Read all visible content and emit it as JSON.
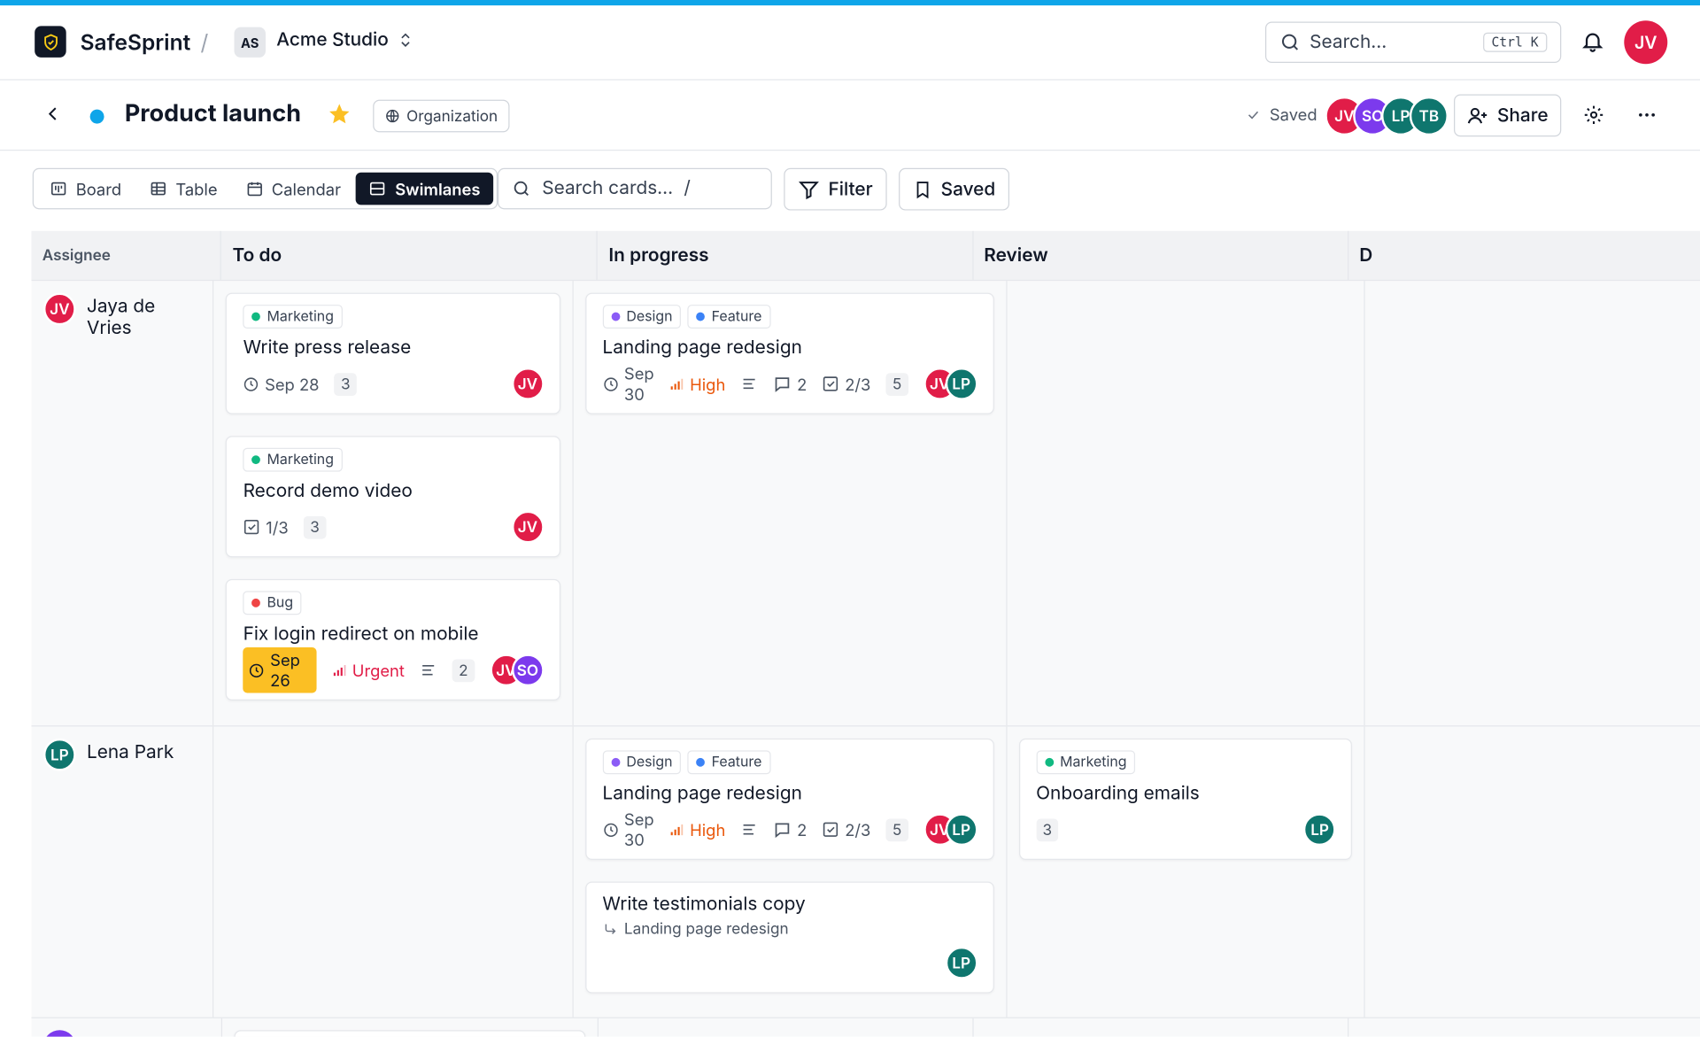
{
  "header": {
    "brand": "SafeSprint",
    "separator": "/",
    "workspace_initials": "AS",
    "workspace": "Acme Studio",
    "search_placeholder": "Search...",
    "shortcut": "Ctrl K",
    "user": "JV"
  },
  "project": {
    "title": "Product launch",
    "visibility": "Organization",
    "status": "Saved",
    "members": [
      "JV",
      "SO",
      "LP",
      "TB"
    ],
    "share": "Share"
  },
  "toolbar": {
    "views": [
      "Board",
      "Table",
      "Calendar",
      "Swimlanes"
    ],
    "active_view": "Swimlanes",
    "search_placeholder": "Search cards...",
    "search_shortcut": "/",
    "filter": "Filter",
    "saved": "Saved"
  },
  "people": [
    {
      "initials": "JV",
      "color": "#e11d48"
    },
    {
      "initials": "SO",
      "color": "#7c3aed"
    },
    {
      "initials": "LP",
      "color": "#0f766e"
    },
    {
      "initials": "TB",
      "color": "#0f766e"
    },
    {
      "initials": "AS",
      "color": "#e5e7eb"
    }
  ],
  "board": {
    "assignee_label": "Assignee",
    "columns": [
      "To do",
      "In progress",
      "Review",
      "D"
    ],
    "lanes": [
      {
        "initials": "JV",
        "name": "Jaya de Vries",
        "cells": [
          [
            {
              "tags": [
                {
                  "name": "Marketing",
                  "color": "#10b981"
                }
              ],
              "title": "Write press release",
              "due": "Sep 28",
              "count": 3,
              "avatars": [
                "JV"
              ]
            },
            {
              "tags": [
                {
                  "name": "Marketing",
                  "color": "#10b981"
                }
              ],
              "title": "Record demo video",
              "checklist": "1/3",
              "count": 3,
              "avatars": [
                "JV"
              ]
            },
            {
              "tags": [
                {
                  "name": "Bug",
                  "color": "#ef4444"
                }
              ],
              "title": "Fix login redirect on mobile",
              "due": "Sep 26",
              "overdue": true,
              "priority": {
                "label": "Urgent",
                "color": "#e11d48"
              },
              "description": true,
              "count": 2,
              "avatars": [
                "JV",
                "SO"
              ]
            }
          ],
          [
            {
              "tags": [
                {
                  "name": "Design",
                  "color": "#8b5cf6"
                },
                {
                  "name": "Feature",
                  "color": "#3b82f6"
                }
              ],
              "title": "Landing page redesign",
              "due": "Sep 30",
              "priority": {
                "label": "High",
                "color": "#ea580c"
              },
              "description": true,
              "comments": 2,
              "checklist": "2/3",
              "count": 5,
              "avatars": [
                "JV",
                "LP"
              ]
            }
          ],
          [],
          []
        ]
      },
      {
        "initials": "LP",
        "name": "Lena Park",
        "cells": [
          [],
          [
            {
              "tags": [
                {
                  "name": "Design",
                  "color": "#8b5cf6"
                },
                {
                  "name": "Feature",
                  "color": "#3b82f6"
                }
              ],
              "title": "Landing page redesign",
              "due": "Sep 30",
              "priority": {
                "label": "High",
                "color": "#ea580c"
              },
              "description": true,
              "comments": 2,
              "checklist": "2/3",
              "count": 5,
              "avatars": [
                "JV",
                "LP"
              ]
            },
            {
              "title": "Write testimonials copy",
              "parent": "Landing page redesign",
              "avatars": [
                "LP"
              ]
            }
          ],
          [
            {
              "tags": [
                {
                  "name": "Marketing",
                  "color": "#10b981"
                }
              ],
              "title": "Onboarding emails",
              "count": 3,
              "avatars": [
                "LP"
              ]
            }
          ],
          []
        ]
      }
    ]
  }
}
